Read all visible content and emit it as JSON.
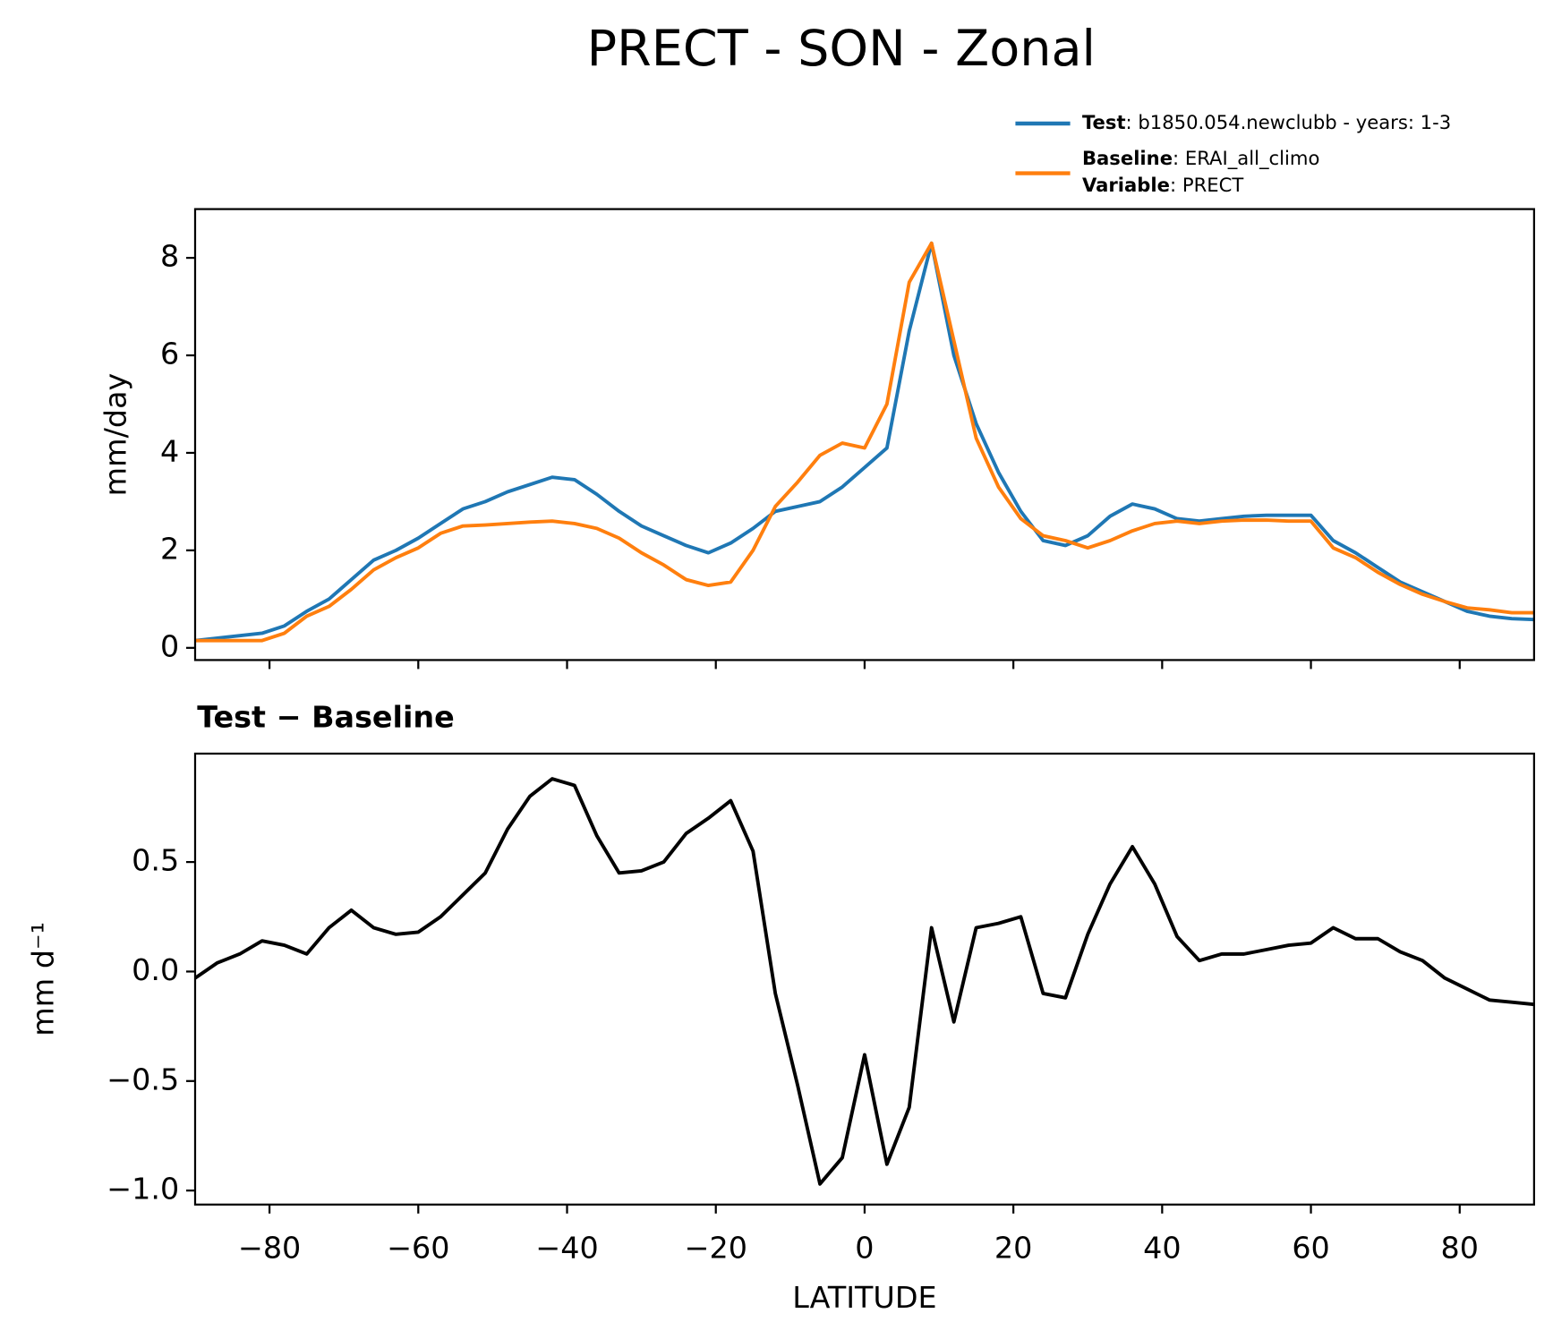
{
  "title": "PRECT - SON - Zonal",
  "chart_data": [
    {
      "type": "line",
      "ylabel": "mm/day",
      "x": [
        -90,
        -87,
        -84,
        -81,
        -78,
        -75,
        -72,
        -69,
        -66,
        -63,
        -60,
        -57,
        -54,
        -51,
        -48,
        -45,
        -42,
        -39,
        -36,
        -33,
        -30,
        -27,
        -24,
        -21,
        -18,
        -15,
        -12,
        -9,
        -6,
        -3,
        0,
        3,
        6,
        9,
        12,
        15,
        18,
        21,
        24,
        27,
        30,
        33,
        36,
        39,
        42,
        45,
        48,
        51,
        54,
        57,
        60,
        63,
        66,
        69,
        72,
        75,
        78,
        81,
        84,
        87,
        90
      ],
      "series": [
        {
          "name": "Test",
          "description": ": b1850.054.newclubb - years: 1-3",
          "color": "#1f77b4",
          "values": [
            0.15,
            0.2,
            0.25,
            0.3,
            0.45,
            0.75,
            1.0,
            1.4,
            1.8,
            2.0,
            2.25,
            2.55,
            2.85,
            3.0,
            3.2,
            3.35,
            3.5,
            3.45,
            3.15,
            2.8,
            2.5,
            2.3,
            2.1,
            1.95,
            2.15,
            2.45,
            2.8,
            2.9,
            3.0,
            3.3,
            3.7,
            4.1,
            6.5,
            8.3,
            6.0,
            4.6,
            3.6,
            2.8,
            2.2,
            2.1,
            2.3,
            2.7,
            2.95,
            2.85,
            2.65,
            2.6,
            2.65,
            2.7,
            2.72,
            2.72,
            2.72,
            2.2,
            1.95,
            1.65,
            1.35,
            1.15,
            0.95,
            0.75,
            0.65,
            0.6,
            0.58
          ]
        },
        {
          "name": "Baseline",
          "description": ": ERAI_all_climo",
          "color": "#ff7f0e",
          "values": [
            0.15,
            0.15,
            0.15,
            0.15,
            0.3,
            0.65,
            0.85,
            1.2,
            1.6,
            1.85,
            2.05,
            2.35,
            2.5,
            2.52,
            2.55,
            2.58,
            2.6,
            2.55,
            2.45,
            2.25,
            1.95,
            1.7,
            1.4,
            1.28,
            1.35,
            2.0,
            2.9,
            3.4,
            3.95,
            4.2,
            4.1,
            5.0,
            7.5,
            8.3,
            6.3,
            4.3,
            3.3,
            2.65,
            2.3,
            2.2,
            2.05,
            2.2,
            2.4,
            2.55,
            2.6,
            2.55,
            2.6,
            2.62,
            2.62,
            2.6,
            2.6,
            2.05,
            1.85,
            1.55,
            1.3,
            1.1,
            0.95,
            0.82,
            0.78,
            0.72,
            0.72
          ]
        }
      ],
      "legend_note": {
        "name": "Variable",
        "description": ": PRECT"
      },
      "xlim": [
        -90,
        90
      ],
      "xticks": [
        -80,
        -60,
        -40,
        -20,
        0,
        20,
        40,
        60,
        80
      ],
      "ylim": [
        -0.25,
        9.0
      ],
      "yticks": [
        0,
        2,
        4,
        6,
        8
      ]
    },
    {
      "type": "line",
      "title": "Test − Baseline",
      "ylabel": "mm d⁻¹",
      "xlabel": "LATITUDE",
      "color": "#000000",
      "x": [
        -90,
        -87,
        -84,
        -81,
        -78,
        -75,
        -72,
        -69,
        -66,
        -63,
        -60,
        -57,
        -54,
        -51,
        -48,
        -45,
        -42,
        -39,
        -36,
        -33,
        -30,
        -27,
        -24,
        -21,
        -18,
        -15,
        -12,
        -9,
        -6,
        -3,
        0,
        3,
        6,
        9,
        12,
        15,
        18,
        21,
        24,
        27,
        30,
        33,
        36,
        39,
        42,
        45,
        48,
        51,
        54,
        57,
        60,
        63,
        66,
        69,
        72,
        75,
        78,
        81,
        84,
        87,
        90
      ],
      "values": [
        -0.03,
        0.04,
        0.08,
        0.14,
        0.12,
        0.08,
        0.2,
        0.28,
        0.2,
        0.17,
        0.18,
        0.25,
        0.35,
        0.45,
        0.65,
        0.8,
        0.88,
        0.85,
        0.62,
        0.45,
        0.46,
        0.5,
        0.63,
        0.7,
        0.78,
        0.55,
        -0.1,
        -0.52,
        -0.97,
        -0.85,
        -0.38,
        -0.88,
        -0.62,
        0.2,
        -0.23,
        0.2,
        0.22,
        0.25,
        -0.1,
        -0.12,
        0.17,
        0.4,
        0.57,
        0.4,
        0.16,
        0.05,
        0.08,
        0.08,
        0.1,
        0.12,
        0.13,
        0.2,
        0.15,
        0.15,
        0.09,
        0.05,
        -0.03,
        -0.08,
        -0.13,
        -0.14,
        -0.15
      ],
      "xlim": [
        -90,
        90
      ],
      "xticks": [
        {
          "value": -80,
          "label": "−80"
        },
        {
          "value": -60,
          "label": "−60"
        },
        {
          "value": -40,
          "label": "−40"
        },
        {
          "value": -20,
          "label": "−20"
        },
        0,
        20,
        40,
        60,
        80
      ],
      "ylim": [
        -1.064,
        0.995
      ],
      "yticks": [
        {
          "value": -1.0,
          "label": "−1.0"
        },
        {
          "value": -0.5,
          "label": "−0.5"
        },
        {
          "value": 0.0,
          "label": "0.0"
        },
        0.5
      ]
    }
  ]
}
